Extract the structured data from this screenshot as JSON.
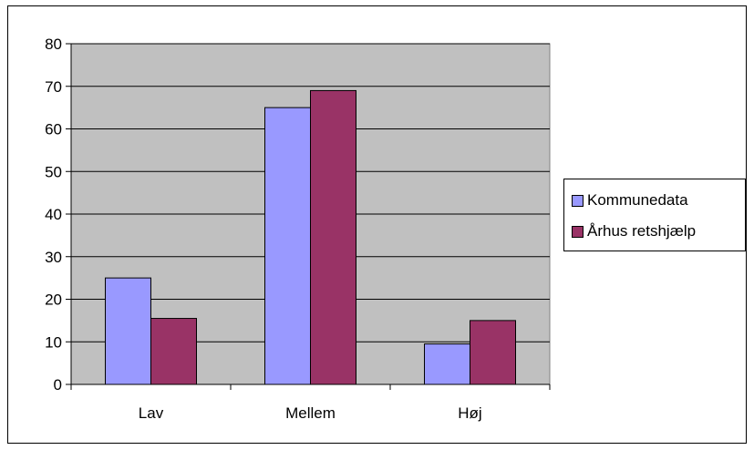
{
  "chart_data": {
    "type": "bar",
    "title": "",
    "xlabel": "",
    "ylabel": "",
    "categories": [
      "Lav",
      "Mellem",
      "Høj"
    ],
    "series": [
      {
        "name": "Kommunedata",
        "color": "#9999ff",
        "values": [
          25,
          65,
          9.5
        ]
      },
      {
        "name": "Århus retshjælp",
        "color": "#993366",
        "values": [
          15.5,
          69,
          15
        ]
      }
    ],
    "ylim": [
      0,
      80
    ],
    "yticks": [
      0,
      10,
      20,
      30,
      40,
      50,
      60,
      70,
      80
    ],
    "grid": true,
    "plot_background": "#c0c0c0",
    "legend_position": "right"
  }
}
